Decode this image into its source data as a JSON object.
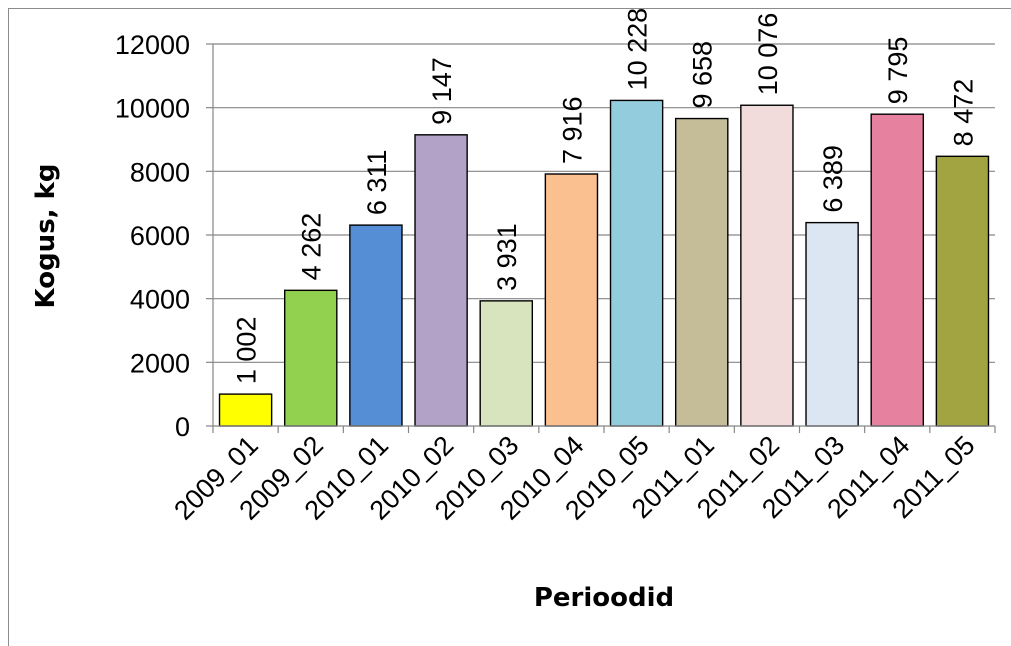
{
  "chart_data": {
    "type": "bar",
    "title": "",
    "xlabel": "Perioodid",
    "ylabel": "Kogus, kg",
    "categories": [
      "2009_01",
      "2009_02",
      "2010_01",
      "2010_02",
      "2010_03",
      "2010_04",
      "2010_05",
      "2011_01",
      "2011_02",
      "2011_03",
      "2011_04",
      "2011_05"
    ],
    "values": [
      1002,
      4262,
      6311,
      9147,
      3931,
      7916,
      10228,
      9658,
      10076,
      6389,
      9795,
      8472
    ],
    "value_labels": [
      "1 002",
      "4 262",
      "6 311",
      "9 147",
      "3 931",
      "7 916",
      "10 228",
      "9 658",
      "10 076",
      "6 389",
      "9 795",
      "8 472"
    ],
    "colors": [
      "#ffff00",
      "#92d050",
      "#558ed5",
      "#b3a2c7",
      "#d7e4bd",
      "#fac090",
      "#93cddd",
      "#c4bd97",
      "#f2dcdb",
      "#dce6f2",
      "#e6819f",
      "#a2a341"
    ],
    "ylim": [
      0,
      12000
    ],
    "yticks": [
      0,
      2000,
      4000,
      6000,
      8000,
      10000,
      12000
    ],
    "grid": true,
    "legend": "none"
  }
}
